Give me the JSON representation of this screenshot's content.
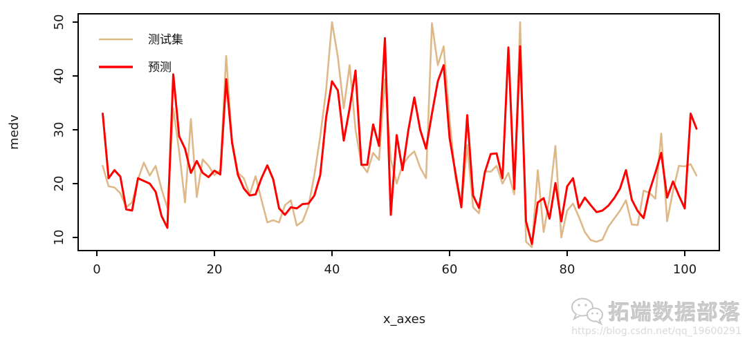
{
  "figure": {
    "background": "#ffffff",
    "axis_color": "#000000",
    "tick_label_color": "#1a1a1a"
  },
  "watermark": {
    "brand": "拓端数据部落",
    "url": "https://blog.csdn.net/qq_19600291",
    "icon": "wechat-icon",
    "icon_color": "#c6c6c6"
  },
  "chart_data": {
    "type": "line",
    "title": "",
    "xlabel": "x_axes",
    "ylabel": "medv",
    "xlim": [
      -3,
      106
    ],
    "ylim": [
      7.5,
      51.5
    ],
    "x_ticks": [
      0,
      20,
      40,
      60,
      80,
      100
    ],
    "y_ticks": [
      10,
      20,
      30,
      40,
      50
    ],
    "grid": false,
    "legend_position": "top-left",
    "x": {
      "start": 1,
      "end": 102,
      "step": 1
    },
    "series": [
      {
        "name": "测试集",
        "color": "#DEB887",
        "values": [
          23.3,
          19.5,
          19.3,
          18.2,
          15.6,
          16.5,
          20.8,
          23.9,
          21.5,
          23.3,
          19.0,
          15.5,
          34.0,
          26.0,
          16.5,
          32.0,
          17.5,
          24.5,
          23.3,
          21.6,
          22.5,
          43.7,
          28.0,
          22.0,
          21.0,
          18.0,
          21.4,
          17.0,
          12.8,
          13.2,
          12.8,
          16.0,
          16.9,
          12.2,
          13.0,
          15.8,
          21.6,
          28.8,
          37.4,
          50.0,
          43.5,
          34.0,
          42.0,
          30.0,
          23.6,
          22.1,
          25.7,
          24.4,
          39.4,
          24.5,
          20.0,
          23.5,
          25.0,
          26.0,
          23.0,
          21.0,
          49.8,
          42.0,
          45.5,
          32.0,
          21.0,
          15.6,
          27.2,
          15.6,
          14.5,
          22.3,
          22.2,
          23.3,
          20.0,
          22.0,
          18.0,
          50.0,
          9.2,
          8.2,
          22.5,
          11.0,
          17.3,
          27.0,
          10.0,
          15.0,
          16.3,
          13.8,
          11.0,
          9.5,
          9.2,
          9.6,
          12.0,
          13.5,
          15.0,
          16.9,
          12.4,
          12.3,
          18.7,
          18.3,
          17.2,
          29.3,
          13.0,
          18.6,
          23.3,
          23.2,
          23.6,
          21.5
        ]
      },
      {
        "name": "预测",
        "color": "#FF0000",
        "values": [
          33.0,
          21.0,
          22.5,
          21.3,
          15.2,
          15.0,
          21.0,
          20.5,
          20.0,
          18.5,
          14.0,
          11.8,
          40.3,
          28.8,
          26.5,
          22.0,
          24.2,
          22.0,
          21.2,
          22.4,
          21.7,
          39.4,
          27.6,
          21.6,
          19.1,
          17.8,
          18.0,
          21.0,
          23.4,
          20.8,
          15.4,
          14.2,
          15.6,
          15.4,
          16.2,
          16.3,
          17.8,
          21.6,
          32.3,
          39.0,
          37.3,
          28.0,
          34.0,
          41.0,
          23.5,
          23.5,
          31.0,
          27.0,
          47.0,
          14.2,
          29.0,
          22.5,
          30.0,
          36.0,
          30.0,
          26.5,
          33.0,
          39.0,
          42.0,
          28.5,
          22.0,
          15.6,
          32.7,
          17.8,
          15.5,
          22.1,
          25.5,
          25.6,
          21.0,
          45.3,
          19.0,
          45.5,
          13.0,
          8.8,
          16.5,
          17.3,
          13.5,
          20.1,
          13.0,
          19.5,
          21.0,
          15.5,
          17.4,
          16.0,
          14.7,
          15.0,
          15.9,
          17.3,
          19.1,
          22.5,
          17.0,
          14.9,
          13.6,
          18.6,
          22.0,
          25.7,
          17.4,
          20.4,
          17.8,
          15.4,
          33.0,
          30.2
        ]
      }
    ]
  }
}
